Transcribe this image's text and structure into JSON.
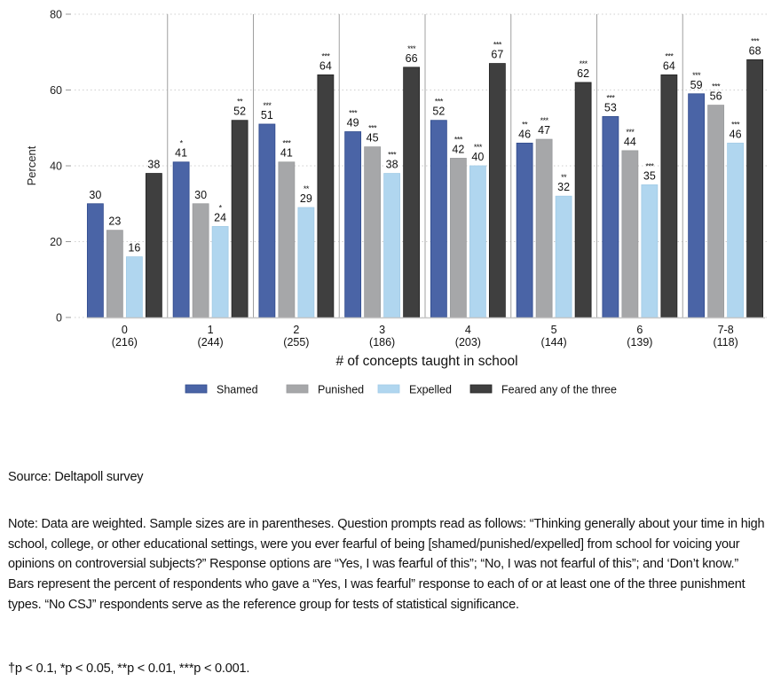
{
  "chart_data": {
    "type": "bar",
    "title": "",
    "xlabel": "# of concepts taught in school",
    "ylabel": "Percent",
    "ylim": [
      0,
      80
    ],
    "yticks": [
      0,
      20,
      40,
      60,
      80
    ],
    "grid": true,
    "legend_position": "bottom",
    "categories": [
      "0",
      "1",
      "2",
      "3",
      "4",
      "5",
      "6",
      "7-8"
    ],
    "category_sample_sizes": [
      "(216)",
      "(244)",
      "(255)",
      "(186)",
      "(203)",
      "(144)",
      "(139)",
      "(118)"
    ],
    "series": [
      {
        "name": "Shamed",
        "color": "#4a64a6",
        "values": [
          30,
          41,
          51,
          49,
          52,
          46,
          53,
          59
        ],
        "significance": [
          "",
          "*",
          "***",
          "***",
          "***",
          "**",
          "***",
          "***"
        ]
      },
      {
        "name": "Punished",
        "color": "#a6a7a9",
        "values": [
          23,
          30,
          41,
          45,
          42,
          47,
          44,
          56
        ],
        "significance": [
          "",
          "",
          "***",
          "***",
          "***",
          "***",
          "***",
          "***"
        ]
      },
      {
        "name": "Expelled",
        "color": "#b0d6ef",
        "values": [
          16,
          24,
          29,
          38,
          40,
          32,
          35,
          46
        ],
        "significance": [
          "",
          "*",
          "**",
          "***",
          "***",
          "**",
          "***",
          "***"
        ]
      },
      {
        "name": "Feared any of the three",
        "color": "#3f3f3f",
        "values": [
          38,
          52,
          64,
          66,
          67,
          62,
          64,
          68
        ],
        "significance": [
          "",
          "**",
          "***",
          "***",
          "***",
          "***",
          "***",
          "***"
        ]
      }
    ]
  },
  "footer": {
    "source": "Source: Deltapoll survey",
    "note": "Note: Data are weighted. Sample sizes are in parentheses. Question prompts read as follows: “Thinking generally about your time in high school, college, or other educational settings, were you ever fearful of being [shamed/punished/expelled] from school for voicing your opinions on controversial subjects?” Response options are “Yes, I was fearful of this”; “No, I was not fearful of this”; and ‘Don’t know.” Bars represent the percent of respondents who gave a “Yes, I was fearful” response to each of or at least one of the three punishment types. “No CSJ” respondents serve as the reference group for tests of statistical significance.",
    "significance_key": "†p < 0.1, *p < 0.05, **p < 0.01, ***p < 0.001."
  }
}
